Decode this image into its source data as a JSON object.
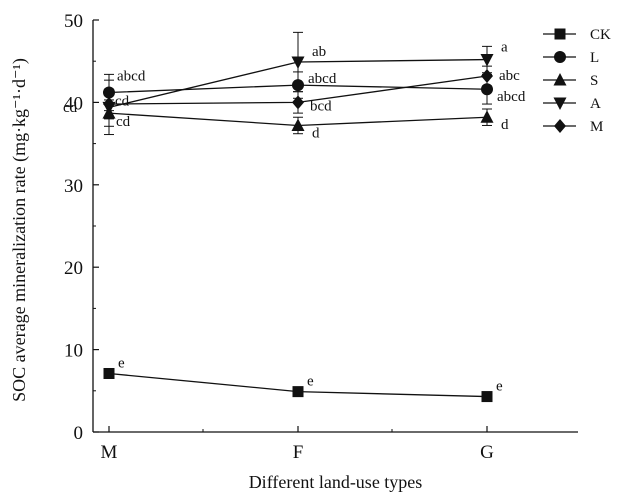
{
  "chart_data": {
    "type": "line",
    "xlabel": "Different land-use types",
    "ylabel": "SOC average mineralization rate (mg·kg⁻¹·d⁻¹)",
    "categories": [
      "M",
      "F",
      "G"
    ],
    "ylim": [
      0,
      50
    ],
    "yticks": [
      0,
      10,
      20,
      30,
      40,
      50
    ],
    "grid": false,
    "legend_position": "top-right",
    "series": [
      {
        "name": "CK",
        "marker": "square",
        "values": [
          7.1,
          4.9,
          4.3
        ],
        "errors": [
          0.0,
          0.0,
          0.0
        ],
        "labels": [
          "e",
          "e",
          "e"
        ]
      },
      {
        "name": "L",
        "marker": "circle",
        "values": [
          41.2,
          42.1,
          41.6
        ],
        "errors": [
          2.2,
          1.6,
          1.8
        ],
        "labels": [
          "abcd",
          "abcd",
          "abcd"
        ]
      },
      {
        "name": "S",
        "marker": "triangle-up",
        "values": [
          38.7,
          37.2,
          38.2
        ],
        "errors": [
          1.6,
          1.0,
          1.0
        ],
        "labels": [
          "cd",
          "d",
          "d"
        ]
      },
      {
        "name": "A",
        "marker": "triangle-down",
        "values": [
          39.4,
          44.9,
          45.2
        ],
        "errors": [
          3.3,
          3.6,
          1.6
        ],
        "labels": [
          "cd",
          "ab",
          "a"
        ]
      },
      {
        "name": "M",
        "marker": "diamond",
        "values": [
          39.8,
          40.0,
          43.2
        ],
        "errors": [
          1.8,
          1.3,
          1.2
        ],
        "labels": [
          "cd",
          "bcd",
          "abc"
        ]
      }
    ]
  }
}
